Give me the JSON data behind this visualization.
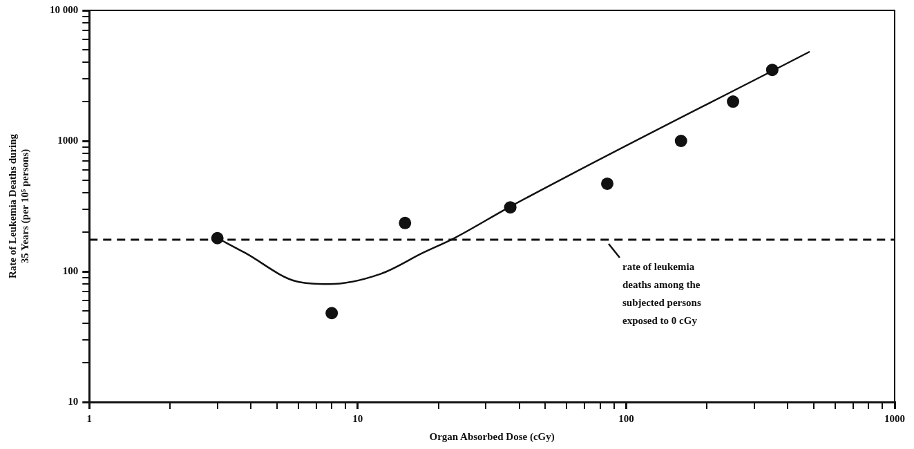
{
  "chart_data": {
    "type": "scatter",
    "xlabel": "Organ Absorbed Dose (cGy)",
    "ylabel": "Rate of Leukemia Deaths during 35 Years (per 10⁵ persons)",
    "log": "xy",
    "grid": false,
    "legend": false,
    "marker": "circle",
    "xlim": [
      1,
      1000
    ],
    "ylim": [
      10,
      10000
    ],
    "xticks": [
      1,
      {
        "value": 2,
        "label": null
      },
      {
        "value": 3,
        "label": null
      },
      {
        "value": 4,
        "label": null
      },
      {
        "value": 5,
        "label": null
      },
      {
        "value": 6,
        "label": null
      },
      {
        "value": 7,
        "label": null
      },
      {
        "value": 8,
        "label": null
      },
      {
        "value": 9,
        "label": null
      },
      10,
      {
        "value": 20,
        "label": null
      },
      {
        "value": 30,
        "label": null
      },
      {
        "value": 40,
        "label": null
      },
      {
        "value": 50,
        "label": null
      },
      {
        "value": 60,
        "label": null
      },
      {
        "value": 70,
        "label": null
      },
      {
        "value": 80,
        "label": null
      },
      {
        "value": 90,
        "label": null
      },
      100,
      {
        "value": 200,
        "label": null
      },
      {
        "value": 300,
        "label": null
      },
      {
        "value": 400,
        "label": null
      },
      {
        "value": 500,
        "label": null
      },
      {
        "value": 600,
        "label": null
      },
      {
        "value": 700,
        "label": null
      },
      {
        "value": 800,
        "label": null
      },
      {
        "value": 900,
        "label": null
      },
      1000
    ],
    "yticks": [
      10,
      {
        "value": 20,
        "label": null
      },
      {
        "value": 30,
        "label": null
      },
      {
        "value": 40,
        "label": null
      },
      {
        "value": 50,
        "label": null
      },
      {
        "value": 60,
        "label": null
      },
      {
        "value": 70,
        "label": null
      },
      {
        "value": 80,
        "label": null
      },
      {
        "value": 90,
        "label": null
      },
      100,
      {
        "value": 200,
        "label": null
      },
      {
        "value": 300,
        "label": null
      },
      {
        "value": 400,
        "label": null
      },
      {
        "value": 500,
        "label": null
      },
      {
        "value": 600,
        "label": null
      },
      {
        "value": 700,
        "label": null
      },
      {
        "value": 800,
        "label": null
      },
      {
        "value": 900,
        "label": null
      },
      1000,
      {
        "value": 2000,
        "label": null
      },
      {
        "value": 3000,
        "label": null
      },
      {
        "value": 4000,
        "label": null
      },
      {
        "value": 5000,
        "label": null
      },
      {
        "value": 6000,
        "label": null
      },
      {
        "value": 7000,
        "label": null
      },
      {
        "value": 8000,
        "label": null
      },
      {
        "value": 9000,
        "label": null
      },
      {
        "value": 10000,
        "label": "10 000"
      }
    ],
    "series": [
      {
        "color": "#111111",
        "x": [
          3,
          8,
          15,
          37,
          85,
          160,
          250,
          350
        ],
        "values": [
          180,
          48,
          235,
          310,
          470,
          1000,
          2000,
          3500
        ]
      },
      {
        "type": "line",
        "color": "#111111",
        "marker": "none",
        "line_style": "solid",
        "x": [
          3,
          3.8,
          5.9,
          7.8,
          12.2,
          17.5,
          23,
          37,
          480
        ],
        "values": [
          180,
          139,
          84,
          80,
          96,
          139,
          181,
          314,
          4800
        ]
      }
    ],
    "ref_lines": [
      {
        "axis": "y",
        "value": 175,
        "color": "#111111",
        "line_style": "dashed"
      }
    ],
    "annotations": [
      {
        "text": "rate of leukemia deaths among the subjected persons exposed to 0 cGy",
        "x": 85,
        "y": 175
      }
    ]
  }
}
